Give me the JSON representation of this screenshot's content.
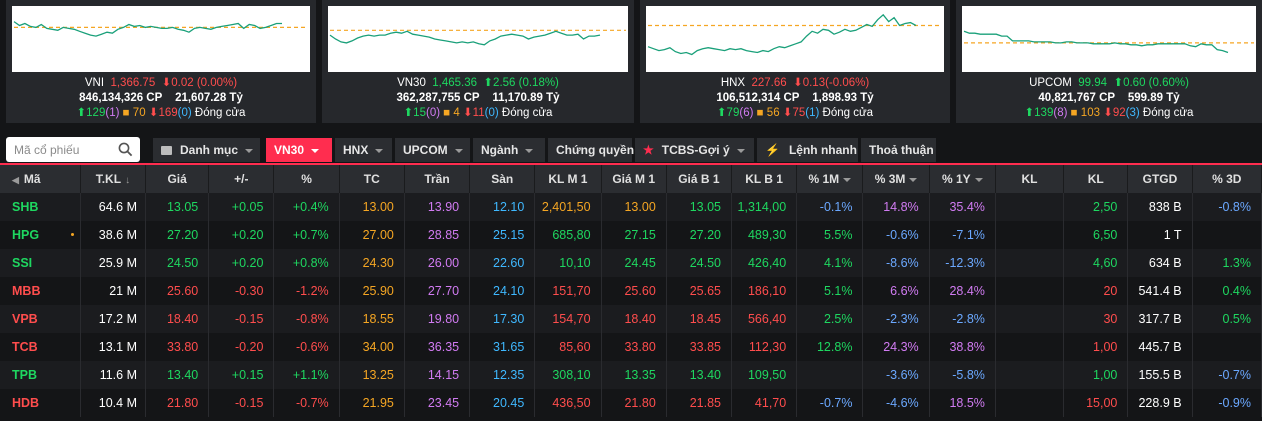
{
  "indices": [
    {
      "name": "VNI",
      "value": "1,366.75",
      "change": "0.02 (0.00%)",
      "direction": "down",
      "volume": "846,134,326 CP",
      "turnover": "21,607.28 Tỷ",
      "up": "129",
      "ceil": "1",
      "ref": "70",
      "down": "169",
      "floor": "0",
      "status": "Đóng cửa",
      "series": [
        48,
        44,
        46,
        43,
        42,
        45,
        41,
        40,
        39,
        42,
        41,
        40,
        38,
        36,
        34,
        33,
        35,
        37,
        36,
        40,
        42,
        45,
        43,
        44,
        42,
        43,
        42,
        41,
        41,
        42,
        40,
        39,
        37,
        41,
        42,
        41,
        40,
        42,
        43,
        44,
        45,
        46,
        41,
        45,
        44,
        41,
        42,
        44,
        46,
        46
      ],
      "ref_level": 42
    },
    {
      "name": "VN30",
      "value": "1,465.36",
      "change": "2.56 (0.18%)",
      "direction": "up",
      "volume": "362,287,755 CP",
      "turnover": "11,170.89 Tỷ",
      "up": "15",
      "ceil": "0",
      "ref": "4",
      "down": "11",
      "floor": "0",
      "status": "Đóng cửa",
      "series": [
        34,
        30,
        27,
        26,
        28,
        31,
        33,
        34,
        33,
        34,
        34,
        36,
        37,
        36,
        38,
        35,
        34,
        33,
        32,
        30,
        29,
        28,
        27,
        26,
        27,
        26,
        27,
        25,
        24,
        28,
        30,
        33,
        34,
        35,
        34,
        33,
        30,
        32,
        33,
        34,
        36,
        38,
        36,
        34,
        34,
        35,
        30,
        33,
        33,
        34
      ],
      "ref_level": 39
    },
    {
      "name": "HNX",
      "value": "227.66",
      "change": "0.13(-0.06%)",
      "direction": "down",
      "volume": "106,512,314 CP",
      "turnover": "1,898.93 Tỷ",
      "up": "79",
      "ceil": "6",
      "ref": "56",
      "down": "75",
      "floor": "1",
      "status": "Đóng cửa",
      "series": [
        22,
        20,
        18,
        19,
        21,
        17,
        15,
        16,
        14,
        18,
        20,
        21,
        20,
        19,
        18,
        20,
        19,
        20,
        18,
        17,
        16,
        18,
        17,
        20,
        22,
        21,
        23,
        25,
        27,
        33,
        38,
        36,
        40,
        39,
        35,
        37,
        40,
        38,
        39,
        42,
        45,
        43,
        50,
        55,
        48,
        52,
        44,
        46,
        47,
        44
      ],
      "ref_level": 44
    },
    {
      "name": "UPCOM",
      "value": "99.94",
      "change": "0.60 (0.60%)",
      "direction": "up",
      "volume": "40,821,767 CP",
      "turnover": "599.89 Tỷ",
      "up": "139",
      "ceil": "8",
      "ref": "103",
      "down": "92",
      "floor": "3",
      "status": "Đóng cửa",
      "series": [
        38,
        36,
        36,
        35,
        35,
        35,
        35,
        33,
        33,
        28,
        28,
        28,
        28,
        27,
        27,
        27,
        27,
        26,
        26,
        27,
        27,
        26,
        26,
        26,
        25,
        25,
        25,
        25,
        26,
        25,
        25,
        24,
        24,
        23,
        24,
        24,
        25,
        25,
        25,
        25,
        25,
        25,
        23,
        22,
        25,
        24,
        24,
        19,
        18,
        16
      ],
      "ref_level": 26
    }
  ],
  "search": {
    "placeholder": "Mã cổ phiếu"
  },
  "tabs": [
    {
      "label": "Danh mục",
      "icon": "folder-icon",
      "caret": true
    },
    {
      "label": "VN30",
      "active": true,
      "caret": true
    },
    {
      "label": "HNX",
      "caret": true
    },
    {
      "label": "UPCOM",
      "caret": true
    },
    {
      "label": "Ngành",
      "caret": true
    },
    {
      "label": "Chứng quyền"
    },
    {
      "label": "TCBS-Gợi ý",
      "icon": "star-icon",
      "caret": true
    },
    {
      "label": "Lệnh nhanh",
      "icon": "lightning-icon"
    },
    {
      "label": "Thoả thuận"
    }
  ],
  "columns": [
    "Mã",
    "T.KL",
    "Giá",
    "+/-",
    "%",
    "TC",
    "Trần",
    "Sàn",
    "KL M 1",
    "Giá M 1",
    "Giá B 1",
    "KL B 1",
    "% 1M",
    "% 3M",
    "% 1Y",
    "KL",
    "KL",
    "GTGD",
    "% 3D"
  ],
  "colors": {
    "up": "#1ed760",
    "down": "#ff4d4d",
    "ref": "#f5a623",
    "ceil": "#d17bf2",
    "floor": "#3fb8ff",
    "accent": "#ff2d4f"
  },
  "rows": [
    {
      "sym": "SHB",
      "tkl": "64.6 M",
      "price": "13.05",
      "chg": "+0.05",
      "pct": "+0.4%",
      "tc": "13.00",
      "tran": "13.90",
      "san": "12.10",
      "klm1": "2,401,50",
      "giam1": "13.00",
      "giab1": "13.05",
      "klb1": "1,314,00",
      "p1m": "-0.1%",
      "p3m": "14.8%",
      "p1y": "35.4%",
      "kl1": "",
      "kl2": "2,50",
      "gtgd": "838 B",
      "p3d": "-0.8%"
    },
    {
      "sym": "HPG",
      "tkl": "38.6 M",
      "price": "27.20",
      "chg": "+0.20",
      "pct": "+0.7%",
      "tc": "27.00",
      "tran": "28.85",
      "san": "25.15",
      "klm1": "685,80",
      "giam1": "27.15",
      "giab1": "27.20",
      "klb1": "489,30",
      "p1m": "5.5%",
      "p3m": "-0.6%",
      "p1y": "-7.1%",
      "kl1": "",
      "kl2": "6,50",
      "gtgd": "1 T",
      "p3d": "",
      "dot": true
    },
    {
      "sym": "SSI",
      "tkl": "25.9 M",
      "price": "24.50",
      "chg": "+0.20",
      "pct": "+0.8%",
      "tc": "24.30",
      "tran": "26.00",
      "san": "22.60",
      "klm1": "10,10",
      "giam1": "24.45",
      "giab1": "24.50",
      "klb1": "426,40",
      "p1m": "4.1%",
      "p3m": "-8.6%",
      "p1y": "-12.3%",
      "kl1": "",
      "kl2": "4,60",
      "gtgd": "634 B",
      "p3d": "1.3%"
    },
    {
      "sym": "MBB",
      "tkl": "21 M",
      "price": "25.60",
      "chg": "-0.30",
      "pct": "-1.2%",
      "tc": "25.90",
      "tran": "27.70",
      "san": "24.10",
      "klm1": "151,70",
      "giam1": "25.60",
      "giab1": "25.65",
      "klb1": "186,10",
      "p1m": "5.1%",
      "p3m": "6.6%",
      "p1y": "28.4%",
      "kl1": "",
      "kl2": "20",
      "gtgd": "541.4 B",
      "p3d": "0.4%"
    },
    {
      "sym": "VPB",
      "tkl": "17.2 M",
      "price": "18.40",
      "chg": "-0.15",
      "pct": "-0.8%",
      "tc": "18.55",
      "tran": "19.80",
      "san": "17.30",
      "klm1": "154,70",
      "giam1": "18.40",
      "giab1": "18.45",
      "klb1": "566,40",
      "p1m": "2.5%",
      "p3m": "-2.3%",
      "p1y": "-2.8%",
      "kl1": "",
      "kl2": "30",
      "gtgd": "317.7 B",
      "p3d": "0.5%"
    },
    {
      "sym": "TCB",
      "tkl": "13.1 M",
      "price": "33.80",
      "chg": "-0.20",
      "pct": "-0.6%",
      "tc": "34.00",
      "tran": "36.35",
      "san": "31.65",
      "klm1": "85,60",
      "giam1": "33.80",
      "giab1": "33.85",
      "klb1": "112,30",
      "p1m": "12.8%",
      "p3m": "24.3%",
      "p1y": "38.8%",
      "kl1": "",
      "kl2": "1,00",
      "gtgd": "445.7 B",
      "p3d": ""
    },
    {
      "sym": "TPB",
      "tkl": "11.6 M",
      "price": "13.40",
      "chg": "+0.15",
      "pct": "+1.1%",
      "tc": "13.25",
      "tran": "14.15",
      "san": "12.35",
      "klm1": "308,10",
      "giam1": "13.35",
      "giab1": "13.40",
      "klb1": "109,50",
      "p1m": "",
      "p3m": "-3.6%",
      "p1y": "-5.8%",
      "kl1": "",
      "kl2": "1,00",
      "gtgd": "155.5 B",
      "p3d": "-0.7%"
    },
    {
      "sym": "HDB",
      "tkl": "10.4 M",
      "price": "21.80",
      "chg": "-0.15",
      "pct": "-0.7%",
      "tc": "21.95",
      "tran": "23.45",
      "san": "20.45",
      "klm1": "436,50",
      "giam1": "21.80",
      "giab1": "21.85",
      "klb1": "41,70",
      "p1m": "-0.7%",
      "p3m": "-4.6%",
      "p1y": "18.5%",
      "kl1": "",
      "kl2": "15,00",
      "gtgd": "228.9 B",
      "p3d": "-0.9%"
    }
  ]
}
